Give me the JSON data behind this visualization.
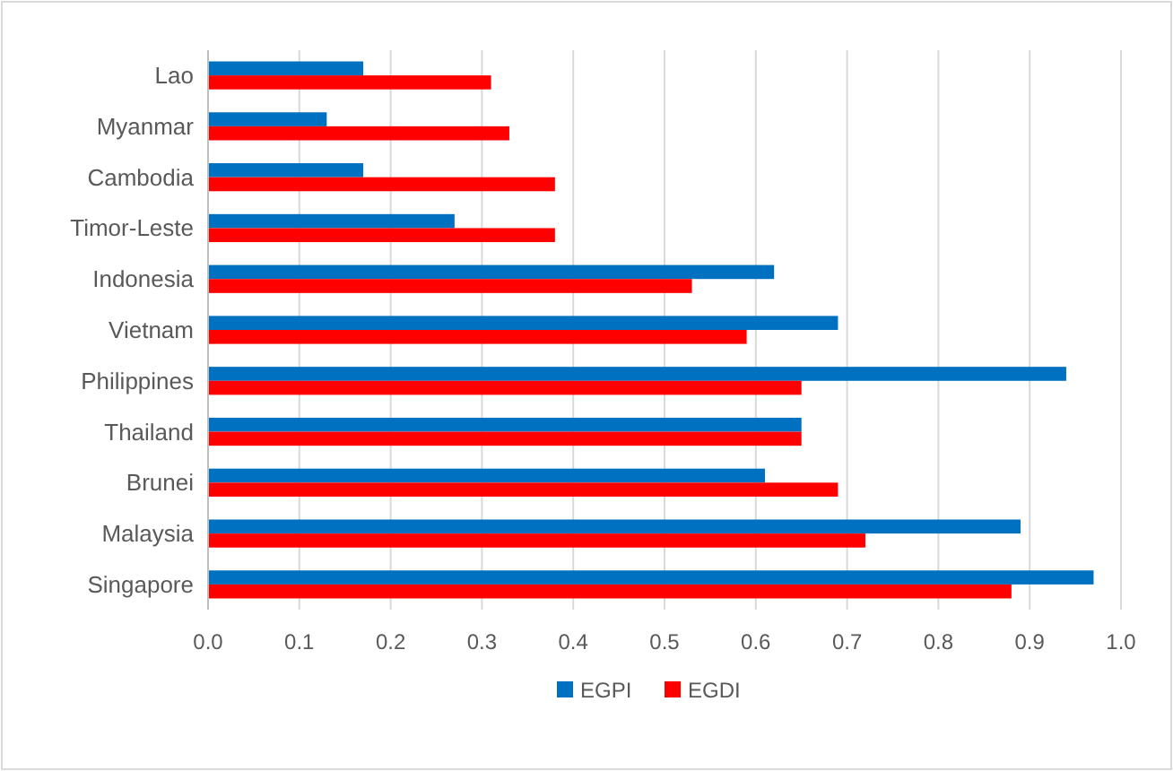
{
  "chart_data": {
    "type": "bar",
    "orientation": "horizontal",
    "categories": [
      "Lao",
      "Myanmar",
      "Cambodia",
      "Timor-Leste",
      "Indonesia",
      "Vietnam",
      "Philippines",
      "Thailand",
      "Brunei",
      "Malaysia",
      "Singapore"
    ],
    "series": [
      {
        "name": "EGPI",
        "color": "#0070c0",
        "values": [
          0.17,
          0.13,
          0.17,
          0.27,
          0.62,
          0.69,
          0.94,
          0.65,
          0.61,
          0.89,
          0.97
        ]
      },
      {
        "name": "EGDI",
        "color": "#ff0000",
        "values": [
          0.31,
          0.33,
          0.38,
          0.38,
          0.53,
          0.59,
          0.65,
          0.65,
          0.69,
          0.72,
          0.88
        ]
      }
    ],
    "xlim": [
      0,
      1
    ],
    "xticks": [
      {
        "value": 0,
        "label": "0.0"
      },
      0.1,
      0.2,
      0.3,
      0.4,
      0.5,
      0.6,
      0.7,
      0.8,
      0.9,
      {
        "value": 1,
        "label": "1.0"
      }
    ],
    "grid": "x",
    "legend": "bottom"
  }
}
